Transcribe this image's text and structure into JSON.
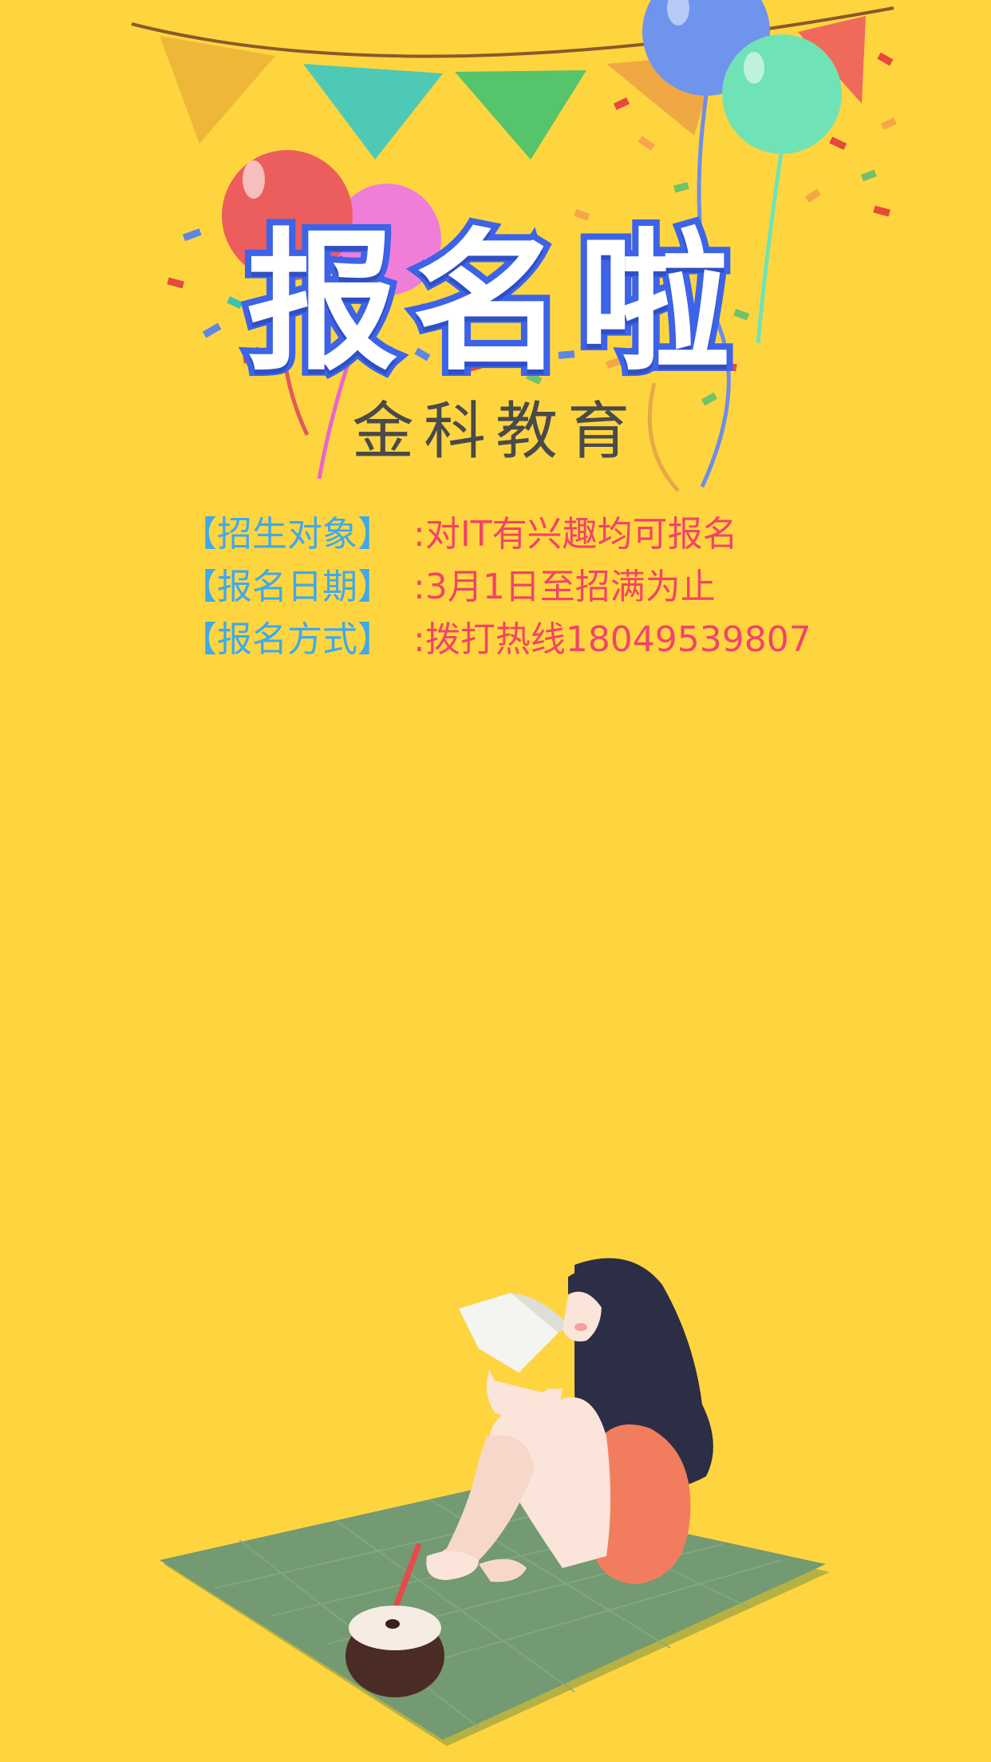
{
  "poster": {
    "title": "报名啦",
    "subtitle": "金科教育",
    "info": [
      {
        "label": "【招生对象】",
        "value": ":对IT有兴趣均可报名"
      },
      {
        "label": "【报名日期】",
        "value": ":3月1日至招满为止"
      },
      {
        "label": "【报名方式】",
        "value": ":拨打热线18049539807"
      }
    ]
  },
  "colors": {
    "background": "#FFD53F",
    "title_fill": "#FFFFFF",
    "title_outline": "#3C63E8",
    "label": "#3DA9EE",
    "value": "#F0446A"
  },
  "icons": [
    "bunting-flags",
    "balloon-icon",
    "confetti",
    "girl-reading-illustration",
    "picnic-mat",
    "coconut-drink-icon"
  ]
}
